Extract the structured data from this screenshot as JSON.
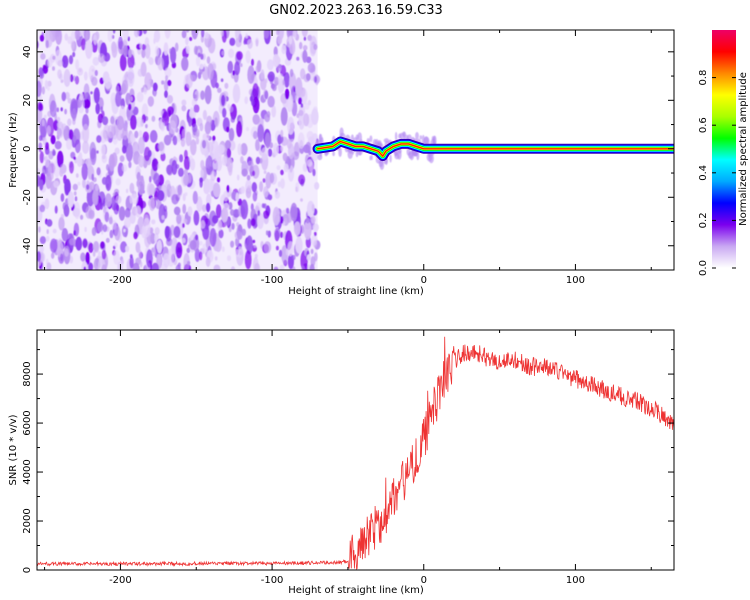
{
  "title": "GN02.2023.263.16.59.C33",
  "chart_data": [
    {
      "type": "heatmap",
      "title": "GN02.2023.263.16.59.C33",
      "xlabel": "Height of straight line (km)",
      "ylabel": "Frequency (Hz)",
      "xlim": [
        -255,
        165
      ],
      "ylim": [
        -50,
        49
      ],
      "x_ticks": [
        "-200",
        "-100",
        "0",
        "100"
      ],
      "y_ticks": [
        "-40",
        "-20",
        "0",
        "20",
        "40"
      ],
      "colorbar": {
        "label": "Normalized spectral amplitude",
        "range": [
          0,
          1
        ],
        "ticks": [
          "0.0",
          "0.2",
          "0.4",
          "0.6",
          "0.8"
        ],
        "colors": [
          "#ffffff",
          "#c9a8f2",
          "#7b00ee",
          "#0000ff",
          "#00aaff",
          "#00ffff",
          "#00ff00",
          "#aaff00",
          "#ffff00",
          "#ff8800",
          "#ff0000",
          "#ee0066"
        ]
      },
      "noise_region_x": [
        -255,
        -70
      ],
      "signal_trace": {
        "x": [
          -70,
          -60,
          -55,
          -50,
          -45,
          -40,
          -35,
          -30,
          -27,
          -25,
          -20,
          -15,
          -10,
          -5,
          0,
          10,
          50,
          100,
          165
        ],
        "y": [
          0,
          1,
          3,
          2,
          1,
          1,
          0,
          -1,
          -3,
          -1,
          1,
          2,
          2,
          1,
          0,
          0,
          0,
          0,
          0
        ]
      }
    },
    {
      "type": "line",
      "xlabel": "Height of straight line (km)",
      "ylabel": "SNR (10 * v/v)",
      "xlim": [
        -255,
        165
      ],
      "ylim": [
        0,
        9800
      ],
      "x_ticks": [
        "-200",
        "-100",
        "0",
        "100"
      ],
      "y_ticks": [
        "0",
        "2000",
        "4000",
        "6000",
        "8000"
      ],
      "color": "#ee3333",
      "series": [
        {
          "x": [
            -255,
            -200,
            -150,
            -100,
            -60,
            -50,
            -45,
            -40,
            -35,
            -30,
            -25,
            -20,
            -15,
            -10,
            -5,
            0,
            5,
            10,
            15,
            20,
            25,
            30,
            35,
            40,
            45,
            50,
            60,
            70,
            80,
            90,
            100,
            110,
            120,
            130,
            140,
            150,
            160,
            165
          ],
          "values": [
            250,
            250,
            260,
            270,
            300,
            350,
            800,
            1200,
            1600,
            1800,
            2300,
            3000,
            3400,
            4100,
            4600,
            5300,
            6300,
            7200,
            8000,
            8500,
            8800,
            8900,
            8900,
            8700,
            8600,
            8500,
            8600,
            8300,
            8300,
            8100,
            7800,
            7600,
            7300,
            7100,
            6900,
            6600,
            6200,
            6000
          ]
        }
      ]
    }
  ]
}
